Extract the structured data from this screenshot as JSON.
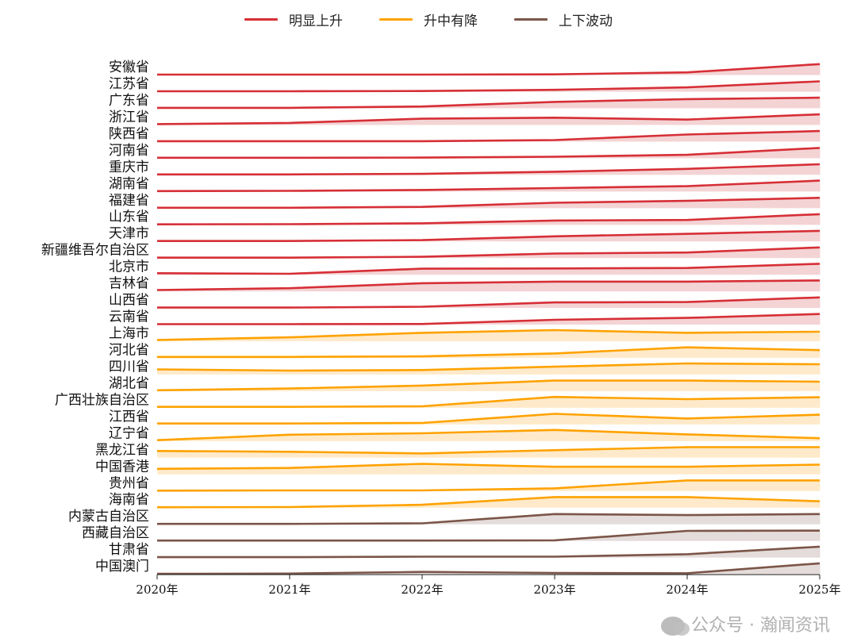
{
  "chart_data": {
    "type": "area",
    "subtype": "ridgeline",
    "title": "",
    "xlabel": "",
    "ylabel": "",
    "x": [
      "2020年",
      "2021年",
      "2022年",
      "2023年",
      "2024年",
      "2025年"
    ],
    "value_scale": "relative (0–1 per row)",
    "grid": false,
    "legend_position": "top-center",
    "legend": [
      {
        "name": "明显上升",
        "color": "#d62f36",
        "fill": "#f4d3d4"
      },
      {
        "name": "升中有降",
        "color": "#ffa200",
        "fill": "#feeacb"
      },
      {
        "name": "上下波动",
        "color": "#7b5548",
        "fill": "#e4dcda"
      }
    ],
    "series": [
      {
        "name": "安徽省",
        "group": 0,
        "values": [
          0,
          0,
          0,
          0.02,
          0.21,
          0.98
        ]
      },
      {
        "name": "江苏省",
        "group": 0,
        "values": [
          0,
          0,
          0.02,
          0.13,
          0.36,
          0.92
        ]
      },
      {
        "name": "广东省",
        "group": 0,
        "values": [
          0,
          0,
          0.13,
          0.56,
          0.82,
          0.95
        ]
      },
      {
        "name": "浙江省",
        "group": 0,
        "values": [
          0.04,
          0.15,
          0.54,
          0.64,
          0.46,
          0.95
        ]
      },
      {
        "name": "陕西省",
        "group": 0,
        "values": [
          0,
          0,
          0,
          0.1,
          0.62,
          0.95
        ]
      },
      {
        "name": "河南省",
        "group": 0,
        "values": [
          0,
          0,
          0.02,
          0.1,
          0.28,
          0.92
        ]
      },
      {
        "name": "重庆市",
        "group": 0,
        "values": [
          0,
          0,
          0.05,
          0.25,
          0.52,
          0.95
        ]
      },
      {
        "name": "湖南省",
        "group": 0,
        "values": [
          0,
          0.02,
          0.1,
          0.28,
          0.46,
          0.98
        ]
      },
      {
        "name": "福建省",
        "group": 0,
        "values": [
          0,
          0,
          0.08,
          0.46,
          0.64,
          0.92
        ]
      },
      {
        "name": "山东省",
        "group": 0,
        "values": [
          0,
          0.02,
          0.1,
          0.36,
          0.41,
          0.95
        ]
      },
      {
        "name": "天津市",
        "group": 0,
        "values": [
          0,
          0,
          0.08,
          0.44,
          0.67,
          0.95
        ]
      },
      {
        "name": "新疆维吾尔自治区",
        "group": 0,
        "values": [
          0,
          0,
          0.08,
          0.38,
          0.48,
          0.95
        ]
      },
      {
        "name": "北京市",
        "group": 0,
        "values": [
          0.1,
          0.05,
          0.52,
          0.54,
          0.59,
          0.98
        ]
      },
      {
        "name": "吉林省",
        "group": 0,
        "values": [
          0.08,
          0.25,
          0.72,
          0.87,
          0.87,
          0.98
        ]
      },
      {
        "name": "山西省",
        "group": 0,
        "values": [
          0,
          0,
          0.08,
          0.48,
          0.52,
          0.95
        ]
      },
      {
        "name": "云南省",
        "group": 0,
        "values": [
          0,
          0,
          0.02,
          0.41,
          0.59,
          0.95
        ]
      },
      {
        "name": "上海市",
        "group": 1,
        "values": [
          0.08,
          0.33,
          0.75,
          1,
          0.75,
          0.85
        ]
      },
      {
        "name": "河北省",
        "group": 1,
        "values": [
          0.05,
          0.05,
          0.1,
          0.38,
          0.95,
          0.69
        ]
      },
      {
        "name": "四川省",
        "group": 1,
        "values": [
          0.44,
          0.33,
          0.38,
          0.69,
          1,
          0.92
        ]
      },
      {
        "name": "湖北省",
        "group": 1,
        "values": [
          0.05,
          0.21,
          0.48,
          0.95,
          0.95,
          0.85
        ]
      },
      {
        "name": "广西壮族自治区",
        "group": 1,
        "values": [
          0.05,
          0.05,
          0.1,
          0.98,
          0.77,
          0.95
        ]
      },
      {
        "name": "江西省",
        "group": 1,
        "values": [
          0.05,
          0.05,
          0.1,
          0.95,
          0.52,
          0.87
        ]
      },
      {
        "name": "辽宁省",
        "group": 1,
        "values": [
          0.05,
          0.56,
          0.69,
          1,
          0.59,
          0.23
        ]
      },
      {
        "name": "黑龙江省",
        "group": 1,
        "values": [
          0.59,
          0.52,
          0.36,
          0.67,
          0.95,
          0.95
        ]
      },
      {
        "name": "中国香港",
        "group": 1,
        "values": [
          0.48,
          0.56,
          0.95,
          0.67,
          0.67,
          0.87
        ]
      },
      {
        "name": "贵州省",
        "group": 1,
        "values": [
          0,
          0.02,
          0.02,
          0.21,
          0.95,
          0.95
        ]
      },
      {
        "name": "海南省",
        "group": 1,
        "values": [
          0,
          0.02,
          0.23,
          0.95,
          0.95,
          0.56
        ]
      },
      {
        "name": "内蒙古自治区",
        "group": 2,
        "values": [
          0,
          0,
          0.05,
          0.92,
          0.82,
          0.92
        ]
      },
      {
        "name": "西藏自治区",
        "group": 2,
        "values": [
          0,
          0,
          0,
          0.02,
          0.9,
          0.92
        ]
      },
      {
        "name": "甘肃省",
        "group": 2,
        "values": [
          0,
          0,
          0.05,
          0.05,
          0.28,
          0.98
        ]
      },
      {
        "name": "中国澳门",
        "group": 2,
        "values": [
          0,
          0.02,
          0.18,
          0.08,
          0.05,
          0.98
        ]
      }
    ]
  },
  "watermark": "公众号 · 瀚闻资讯"
}
